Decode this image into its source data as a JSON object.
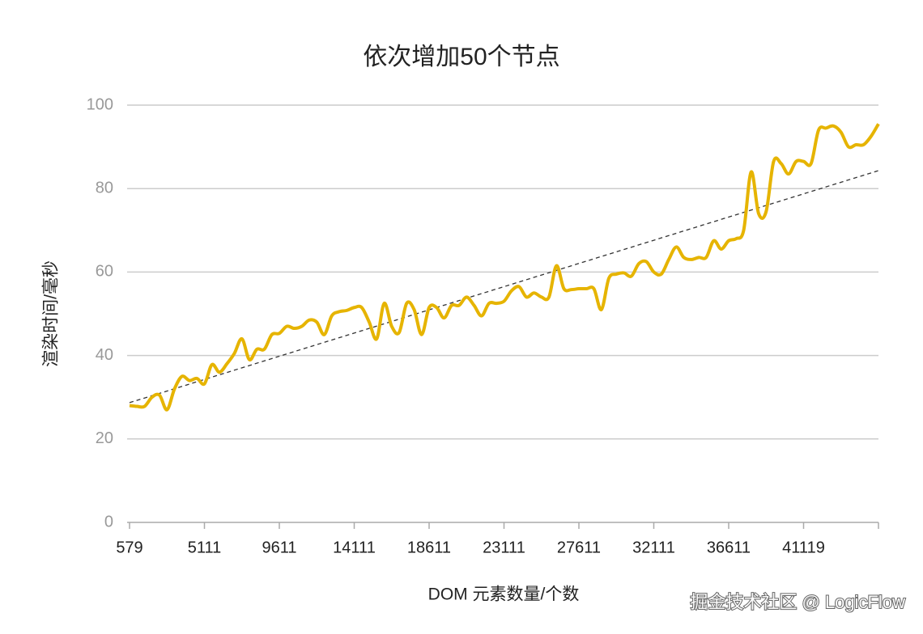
{
  "chart_data": {
    "type": "line",
    "title": "依次增加50个节点",
    "x_label": "DOM 元素数量/个数",
    "y_label": "渲染时间/毫秒",
    "watermark": "掘金技术社区 @ LogicFlow",
    "categories": [
      "579",
      null,
      null,
      null,
      null,
      null,
      null,
      null,
      null,
      null,
      "5111",
      null,
      null,
      null,
      null,
      null,
      null,
      null,
      null,
      null,
      "9611",
      null,
      null,
      null,
      null,
      null,
      null,
      null,
      null,
      null,
      "14111",
      null,
      null,
      null,
      null,
      null,
      null,
      null,
      null,
      null,
      "18611",
      null,
      null,
      null,
      null,
      null,
      null,
      null,
      null,
      null,
      "23111",
      null,
      null,
      null,
      null,
      null,
      null,
      null,
      null,
      null,
      "27611",
      null,
      null,
      null,
      null,
      null,
      null,
      null,
      null,
      null,
      "32111",
      null,
      null,
      null,
      null,
      null,
      null,
      null,
      null,
      null,
      "36611",
      null,
      null,
      null,
      null,
      null,
      null,
      null,
      null,
      null,
      "41119",
      null,
      null,
      null,
      null,
      null,
      null,
      null,
      null,
      null,
      null
    ],
    "values": [
      28,
      27.8,
      27.8,
      30,
      30.5,
      27,
      32,
      35,
      34,
      34.5,
      33.2,
      37.8,
      36,
      38,
      40.5,
      44,
      39,
      41.5,
      41.5,
      45,
      45.3,
      47,
      46.5,
      47,
      48.5,
      48,
      45,
      49.5,
      50.5,
      50.8,
      51.5,
      51.5,
      48,
      44,
      52.5,
      47,
      45.5,
      52.5,
      51,
      45,
      51.5,
      51.5,
      49,
      52,
      52,
      54,
      52,
      49.5,
      52.5,
      52.5,
      53,
      55.5,
      56.5,
      54,
      55,
      54,
      54,
      61.5,
      56,
      55.8,
      56,
      56,
      56,
      51,
      58.5,
      59.5,
      59.8,
      59,
      62,
      62.5,
      60,
      59.5,
      63,
      66,
      63.5,
      63,
      63.5,
      63.5,
      67.5,
      65.5,
      67.5,
      68,
      70,
      84,
      74,
      74.5,
      86.5,
      86,
      83.5,
      86.5,
      86.5,
      86,
      94,
      94.5,
      95,
      93.5,
      90,
      90.5,
      90.5,
      92.5,
      95.5
    ],
    "color": "#e6b400",
    "trendline": [
      28.7,
      84.3
    ],
    "trend_color": "#333333",
    "ylim": [
      0,
      100
    ],
    "yticks": [
      0,
      20,
      40,
      60,
      80,
      100
    ],
    "grid": true
  }
}
